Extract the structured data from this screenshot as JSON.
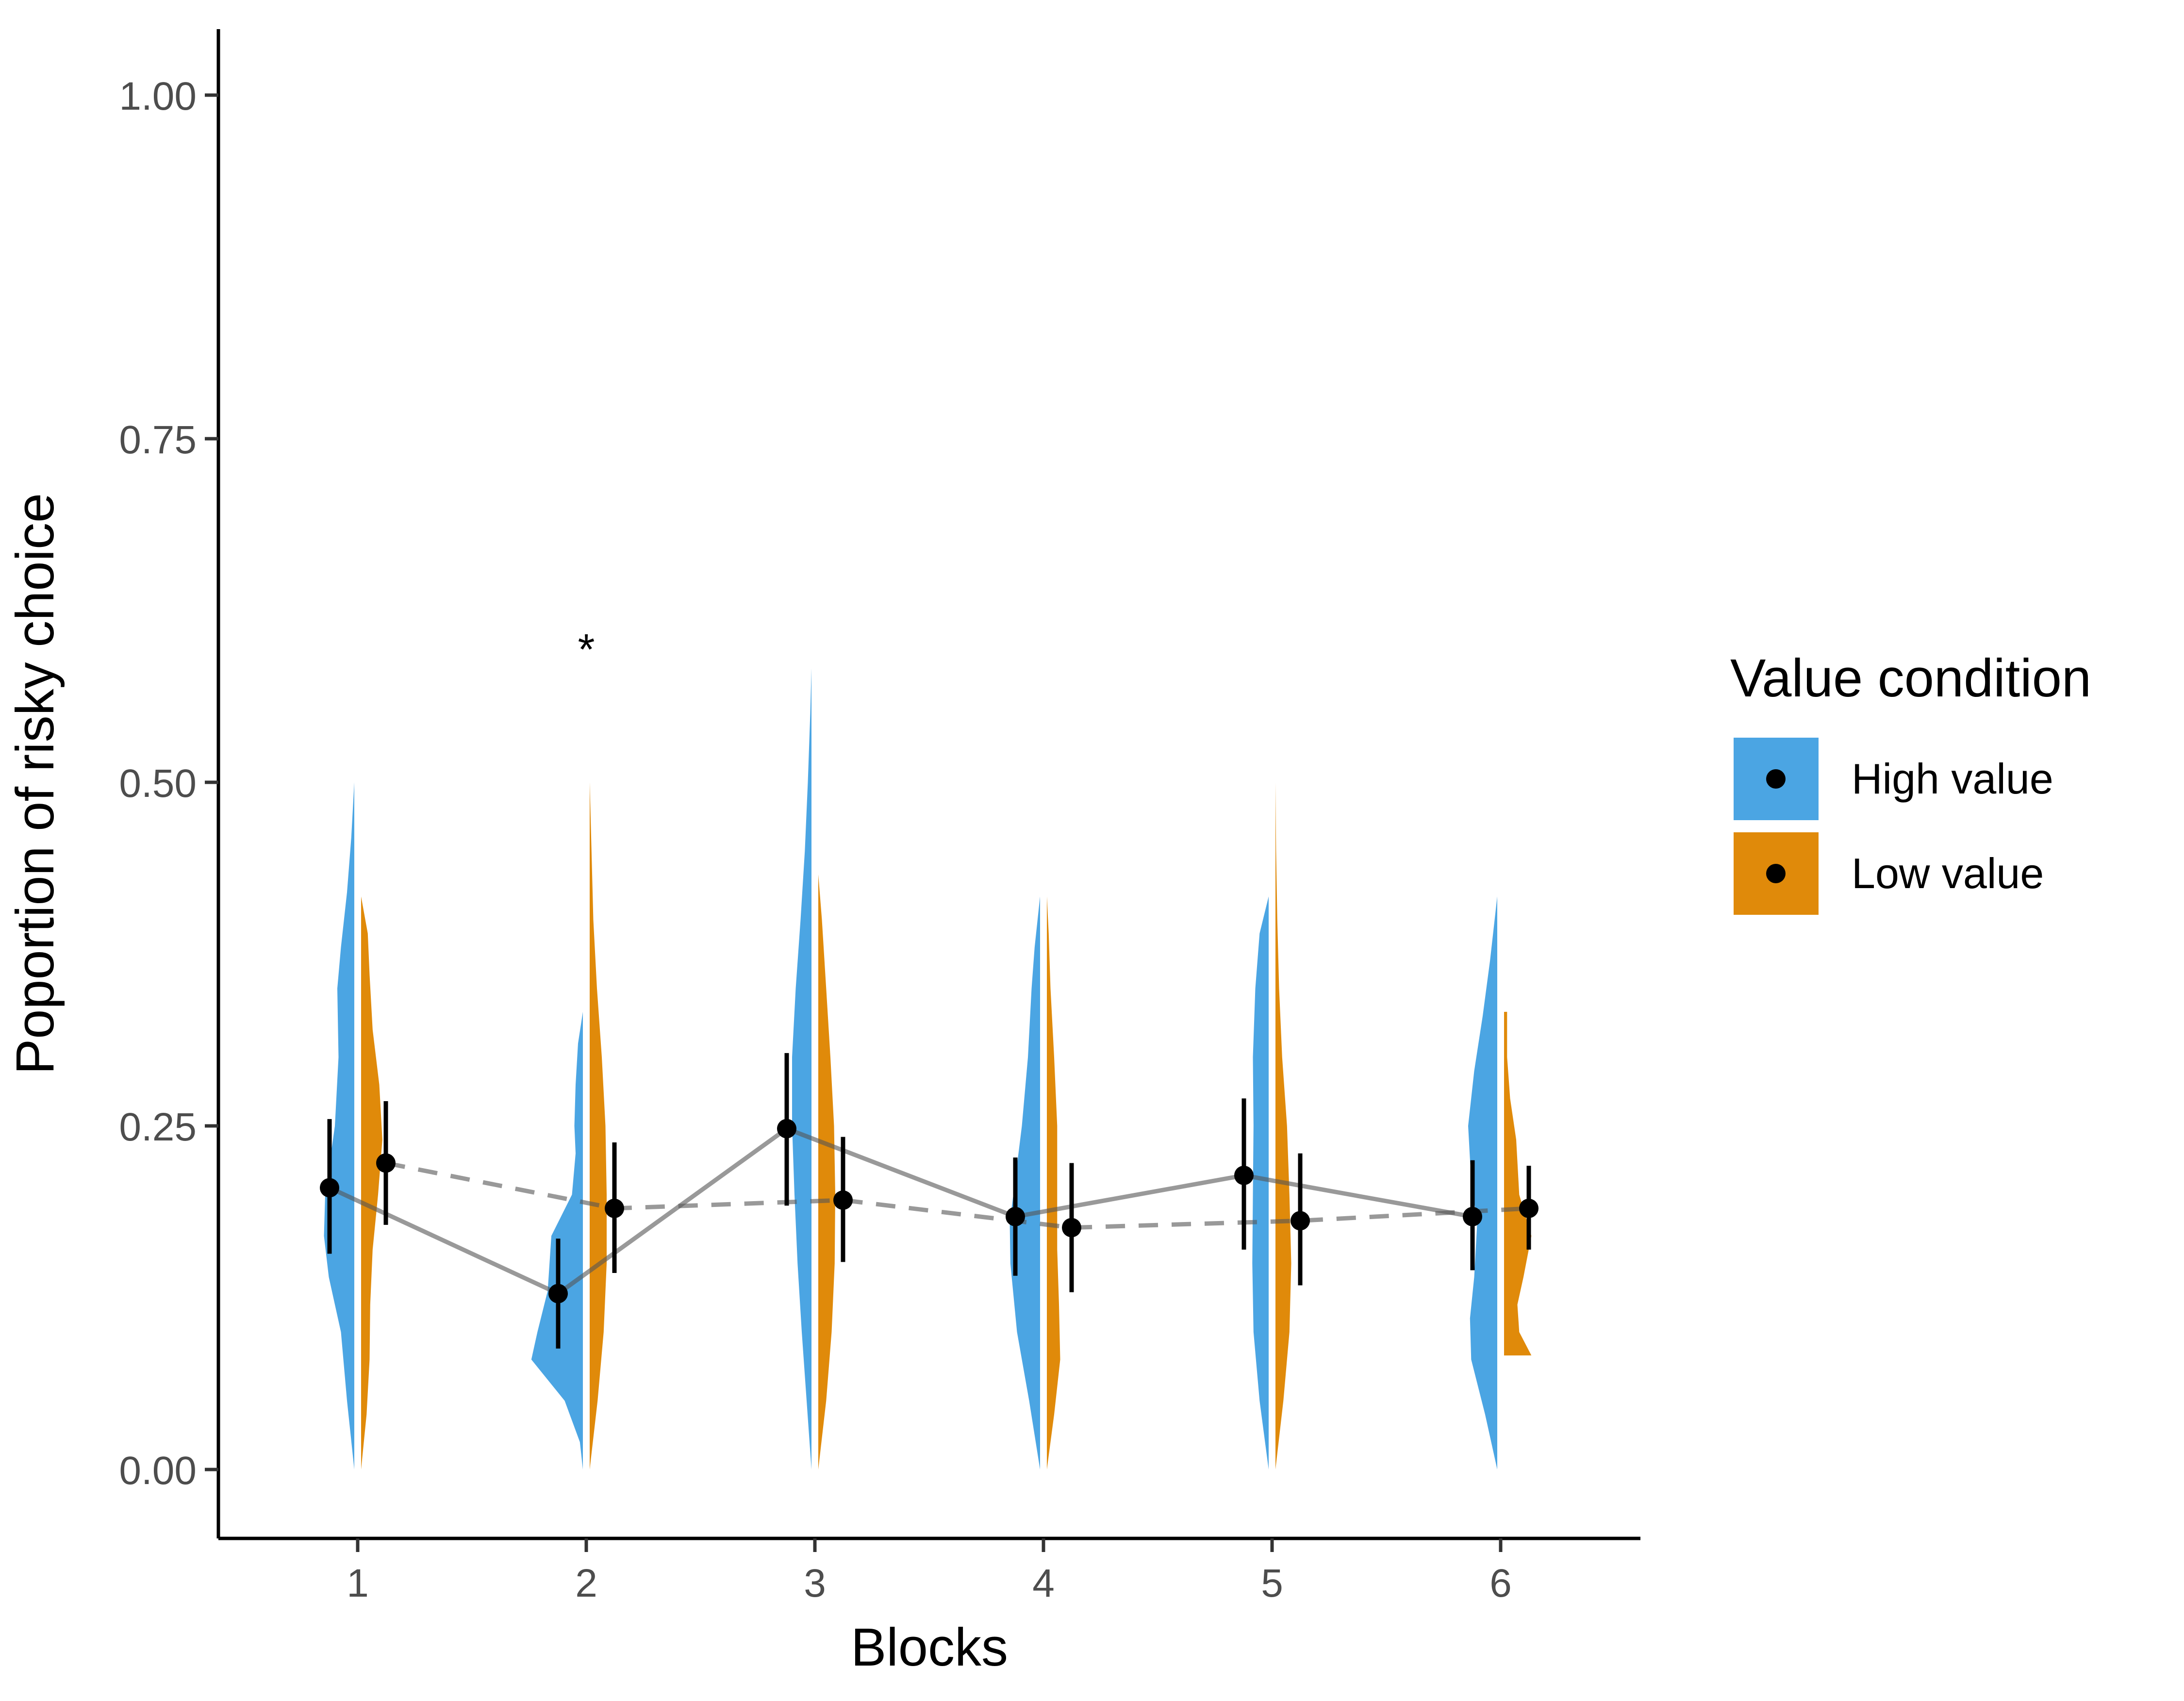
{
  "chart_data": {
    "type": "violin",
    "xlabel": "Blocks",
    "ylabel": "Poportion of risky choice",
    "categories": [
      "1",
      "2",
      "3",
      "4",
      "5",
      "6"
    ],
    "ylim": [
      -0.05,
      1.05
    ],
    "yticks": [
      0.0,
      0.25,
      0.5,
      0.75,
      1.0
    ],
    "ytick_labels": [
      "0.00",
      "0.25",
      "0.50",
      "0.75",
      "1.00"
    ],
    "grid": false,
    "legend": {
      "title": "Value condition",
      "position": "right"
    },
    "series": [
      {
        "name": "High value",
        "color": "#4BA5E3",
        "line_style": "solid",
        "means": [
          0.205,
          0.128,
          0.248,
          0.184,
          0.214,
          0.184
        ],
        "ci_low": [
          0.157,
          0.088,
          0.192,
          0.141,
          0.16,
          0.145
        ],
        "ci_high": [
          0.255,
          0.168,
          0.303,
          0.227,
          0.27,
          0.225
        ],
        "violins": [
          {
            "min": 0.0,
            "max": 0.5,
            "profile": [
              [
                0.0,
                0.0
              ],
              [
                0.05,
                0.12
              ],
              [
                0.1,
                0.22
              ],
              [
                0.14,
                0.42
              ],
              [
                0.17,
                0.5
              ],
              [
                0.2,
                0.48
              ],
              [
                0.25,
                0.32
              ],
              [
                0.3,
                0.26
              ],
              [
                0.35,
                0.28
              ],
              [
                0.38,
                0.22
              ],
              [
                0.42,
                0.12
              ],
              [
                0.46,
                0.05
              ],
              [
                0.5,
                0.0
              ]
            ]
          },
          {
            "min": 0.0,
            "max": 0.333,
            "profile": [
              [
                0.0,
                0.0
              ],
              [
                0.02,
                0.05
              ],
              [
                0.05,
                0.3
              ],
              [
                0.08,
                0.85
              ],
              [
                0.1,
                0.75
              ],
              [
                0.13,
                0.58
              ],
              [
                0.17,
                0.52
              ],
              [
                0.2,
                0.18
              ],
              [
                0.23,
                0.12
              ],
              [
                0.25,
                0.14
              ],
              [
                0.28,
                0.12
              ],
              [
                0.31,
                0.08
              ],
              [
                0.333,
                0.0
              ]
            ]
          },
          {
            "min": 0.0,
            "max": 0.583,
            "profile": [
              [
                0.0,
                0.0
              ],
              [
                0.05,
                0.08
              ],
              [
                0.1,
                0.16
              ],
              [
                0.15,
                0.23
              ],
              [
                0.2,
                0.28
              ],
              [
                0.25,
                0.32
              ],
              [
                0.3,
                0.32
              ],
              [
                0.35,
                0.26
              ],
              [
                0.4,
                0.18
              ],
              [
                0.45,
                0.11
              ],
              [
                0.5,
                0.06
              ],
              [
                0.55,
                0.02
              ],
              [
                0.583,
                0.0
              ]
            ]
          },
          {
            "min": 0.0,
            "max": 0.417,
            "profile": [
              [
                0.0,
                0.0
              ],
              [
                0.05,
                0.18
              ],
              [
                0.1,
                0.38
              ],
              [
                0.15,
                0.49
              ],
              [
                0.18,
                0.5
              ],
              [
                0.2,
                0.44
              ],
              [
                0.25,
                0.3
              ],
              [
                0.3,
                0.2
              ],
              [
                0.35,
                0.14
              ],
              [
                0.38,
                0.09
              ],
              [
                0.417,
                0.0
              ]
            ]
          },
          {
            "min": 0.0,
            "max": 0.417,
            "profile": [
              [
                0.0,
                0.0
              ],
              [
                0.05,
                0.15
              ],
              [
                0.1,
                0.25
              ],
              [
                0.15,
                0.27
              ],
              [
                0.2,
                0.26
              ],
              [
                0.25,
                0.25
              ],
              [
                0.3,
                0.26
              ],
              [
                0.35,
                0.22
              ],
              [
                0.39,
                0.15
              ],
              [
                0.417,
                0.0
              ]
            ]
          },
          {
            "min": 0.0,
            "max": 0.417,
            "profile": [
              [
                0.0,
                0.0
              ],
              [
                0.04,
                0.2
              ],
              [
                0.08,
                0.43
              ],
              [
                0.11,
                0.45
              ],
              [
                0.14,
                0.38
              ],
              [
                0.18,
                0.33
              ],
              [
                0.21,
                0.43
              ],
              [
                0.25,
                0.48
              ],
              [
                0.29,
                0.38
              ],
              [
                0.33,
                0.24
              ],
              [
                0.37,
                0.12
              ],
              [
                0.417,
                0.0
              ]
            ]
          }
        ]
      },
      {
        "name": "Low value",
        "color": "#E08A0A",
        "line_style": "dashed",
        "means": [
          0.223,
          0.19,
          0.196,
          0.176,
          0.181,
          0.19
        ],
        "ci_low": [
          0.178,
          0.143,
          0.151,
          0.129,
          0.134,
          0.16
        ],
        "ci_high": [
          0.268,
          0.238,
          0.242,
          0.223,
          0.23,
          0.221
        ],
        "violins": [
          {
            "min": 0.0,
            "max": 0.417,
            "profile": [
              [
                0.0,
                0.0
              ],
              [
                0.04,
                0.09
              ],
              [
                0.08,
                0.14
              ],
              [
                0.12,
                0.15
              ],
              [
                0.16,
                0.19
              ],
              [
                0.2,
                0.28
              ],
              [
                0.24,
                0.35
              ],
              [
                0.28,
                0.3
              ],
              [
                0.32,
                0.19
              ],
              [
                0.36,
                0.14
              ],
              [
                0.39,
                0.11
              ],
              [
                0.417,
                0.0
              ]
            ]
          },
          {
            "min": 0.0,
            "max": 0.5,
            "profile": [
              [
                0.0,
                0.0
              ],
              [
                0.05,
                0.13
              ],
              [
                0.1,
                0.23
              ],
              [
                0.15,
                0.28
              ],
              [
                0.2,
                0.28
              ],
              [
                0.25,
                0.26
              ],
              [
                0.3,
                0.2
              ],
              [
                0.35,
                0.12
              ],
              [
                0.4,
                0.06
              ],
              [
                0.45,
                0.03
              ],
              [
                0.5,
                0.0
              ]
            ]
          },
          {
            "min": 0.0,
            "max": 0.433,
            "profile": [
              [
                0.0,
                0.0
              ],
              [
                0.05,
                0.13
              ],
              [
                0.1,
                0.22
              ],
              [
                0.15,
                0.27
              ],
              [
                0.2,
                0.28
              ],
              [
                0.25,
                0.26
              ],
              [
                0.3,
                0.2
              ],
              [
                0.35,
                0.13
              ],
              [
                0.4,
                0.06
              ],
              [
                0.433,
                0.0
              ]
            ]
          },
          {
            "min": 0.0,
            "max": 0.417,
            "profile": [
              [
                0.0,
                0.0
              ],
              [
                0.04,
                0.12
              ],
              [
                0.08,
                0.22
              ],
              [
                0.12,
                0.2
              ],
              [
                0.16,
                0.17
              ],
              [
                0.2,
                0.17
              ],
              [
                0.25,
                0.17
              ],
              [
                0.3,
                0.12
              ],
              [
                0.35,
                0.06
              ],
              [
                0.39,
                0.03
              ],
              [
                0.417,
                0.0
              ]
            ]
          },
          {
            "min": 0.0,
            "max": 0.5,
            "profile": [
              [
                0.0,
                0.0
              ],
              [
                0.05,
                0.13
              ],
              [
                0.1,
                0.23
              ],
              [
                0.15,
                0.26
              ],
              [
                0.2,
                0.23
              ],
              [
                0.25,
                0.19
              ],
              [
                0.3,
                0.11
              ],
              [
                0.35,
                0.06
              ],
              [
                0.4,
                0.03
              ],
              [
                0.45,
                0.01
              ],
              [
                0.5,
                0.0
              ]
            ]
          },
          {
            "min": 0.083,
            "max": 0.333,
            "profile": [
              [
                0.083,
                0.45
              ],
              [
                0.1,
                0.25
              ],
              [
                0.12,
                0.22
              ],
              [
                0.14,
                0.32
              ],
              [
                0.17,
                0.45
              ],
              [
                0.2,
                0.25
              ],
              [
                0.24,
                0.2
              ],
              [
                0.27,
                0.1
              ],
              [
                0.3,
                0.05
              ],
              [
                0.333,
                0.05
              ]
            ]
          }
        ]
      }
    ],
    "annotations": [
      {
        "text": "*",
        "category": "2",
        "y": 0.6
      }
    ]
  }
}
